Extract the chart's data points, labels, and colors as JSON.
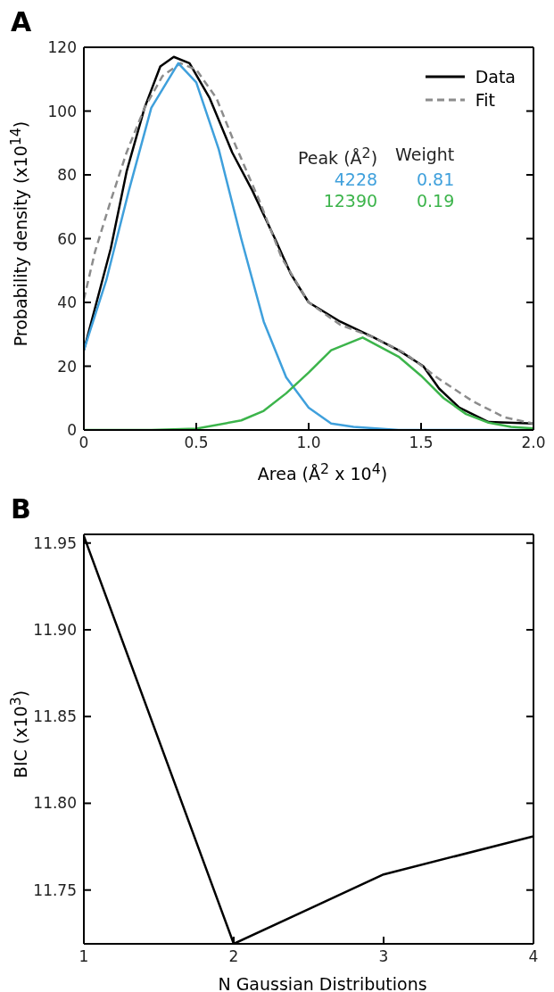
{
  "chart_data": [
    {
      "type": "line",
      "title": "A",
      "xlabel": "Area (Å$^{2}$ x 10$^{4}$)",
      "ylabel": "Probability density (x10$^{14}$)",
      "series": [
        {
          "name": "Data",
          "color": "#000000",
          "line_style": "solid",
          "x": [
            0,
            0.12,
            0.19,
            0.27,
            0.34,
            0.4,
            0.47,
            0.56,
            0.66,
            0.75,
            0.85,
            0.92,
            1.0,
            1.14,
            1.29,
            1.4,
            1.51,
            1.58,
            1.67,
            1.8,
            2.0
          ],
          "values": [
            25,
            57,
            81,
            101,
            114,
            117,
            115,
            104,
            87,
            75,
            60,
            49,
            40,
            34,
            29,
            25,
            20,
            13,
            7,
            2.5,
            2
          ]
        },
        {
          "name": "Fit",
          "color": "#8c8c8c",
          "line_style": "dashed",
          "x": [
            0,
            0.05,
            0.12,
            0.19,
            0.27,
            0.35,
            0.43,
            0.5,
            0.59,
            0.67,
            0.78,
            0.88,
            1.0,
            1.14,
            1.29,
            1.43,
            1.58,
            1.73,
            1.87,
            2.0
          ],
          "values": [
            41,
            56,
            72,
            87,
            101,
            111,
            115,
            113,
            104,
            90,
            72,
            54,
            40,
            33,
            29,
            24,
            16,
            9,
            4,
            2
          ]
        },
        {
          "color": "#3fa0dc",
          "line_style": "solid",
          "x": [
            0,
            0.1,
            0.2,
            0.3,
            0.42,
            0.5,
            0.6,
            0.7,
            0.8,
            0.9,
            1.0,
            1.1,
            1.2,
            1.4,
            1.7,
            2.0
          ],
          "values": [
            25,
            47,
            75,
            101,
            115,
            109,
            88,
            60,
            34,
            16.5,
            7,
            2,
            1,
            0,
            0,
            0
          ]
        },
        {
          "color": "#3cb44b",
          "line_style": "solid",
          "x": [
            0,
            0.3,
            0.5,
            0.7,
            0.8,
            0.9,
            1.0,
            1.1,
            1.24,
            1.4,
            1.5,
            1.6,
            1.7,
            1.8,
            1.9,
            2.0
          ],
          "values": [
            0,
            0,
            0.4,
            3,
            6,
            11.5,
            18,
            25,
            29,
            23,
            17,
            10,
            5,
            2.3,
            1,
            0.5
          ]
        }
      ],
      "xlim": [
        0,
        2
      ],
      "xticks": [
        0,
        0.5,
        {
          "value": 1,
          "label": "1.0"
        },
        1.5,
        {
          "value": 2,
          "label": "2.0"
        }
      ],
      "ylim": [
        0,
        120
      ],
      "yticks": [
        0,
        20,
        40,
        60,
        80,
        100,
        120
      ],
      "grid": false,
      "legend": "top right",
      "marker": "none",
      "annotations": [
        "Peak (Å$^{2}$)",
        "Weight",
        "4228",
        "0.81",
        "12390",
        "0.19"
      ]
    },
    {
      "type": "line",
      "title": "B",
      "xlabel": "N Gaussian Distributions",
      "ylabel": "BIC (x10$^{3}$)",
      "x": [
        1,
        2,
        3,
        4
      ],
      "values": [
        11.954,
        11.719,
        11.759,
        11.781
      ],
      "color": "#000000",
      "xlim": [
        1,
        4
      ],
      "xticks": [
        1,
        2,
        3,
        4
      ],
      "ylim": [
        11.719,
        11.955
      ],
      "yticks": [
        11.75,
        {
          "value": 11.8,
          "label": "11.80"
        },
        11.85,
        {
          "value": 11.9,
          "label": "11.90"
        },
        11.95
      ],
      "grid": false,
      "legend": false,
      "marker": "none",
      "line_style": "solid"
    }
  ]
}
